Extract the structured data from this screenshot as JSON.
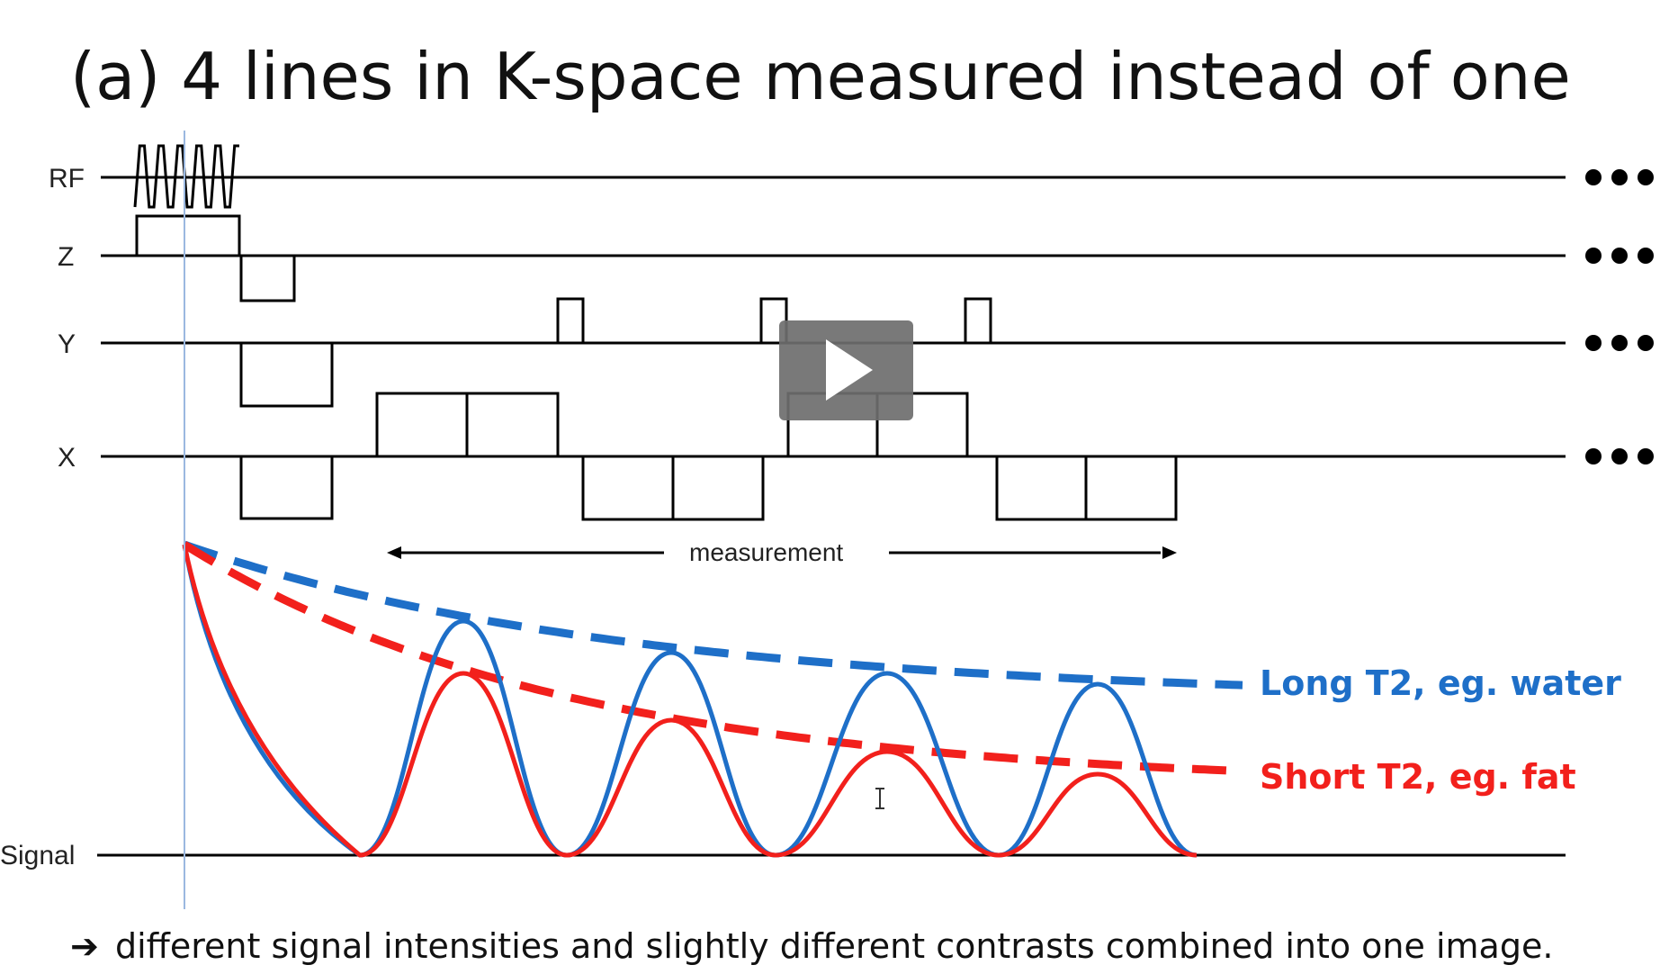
{
  "title": "(a)  4 lines in K-space measured instead of one",
  "rows": {
    "rf": "RF",
    "z": "Z",
    "y": "Y",
    "x": "X",
    "signal": "Signal"
  },
  "continuation": "•••",
  "measurement_label": "measurement",
  "legend": {
    "long": "Long T2, eg. water",
    "short": "Short T2, eg. fat"
  },
  "colors": {
    "long": "#1e6fc8",
    "short": "#f2201c",
    "cursor_line": "#9bb8e0",
    "play_bg": "#6e6e6e"
  },
  "caption": {
    "arrow": "➔",
    "text": "different signal intensities and slightly different contrasts combined into one image."
  },
  "play_icon": "play-icon",
  "cursor_icon": "text-cursor-icon"
}
